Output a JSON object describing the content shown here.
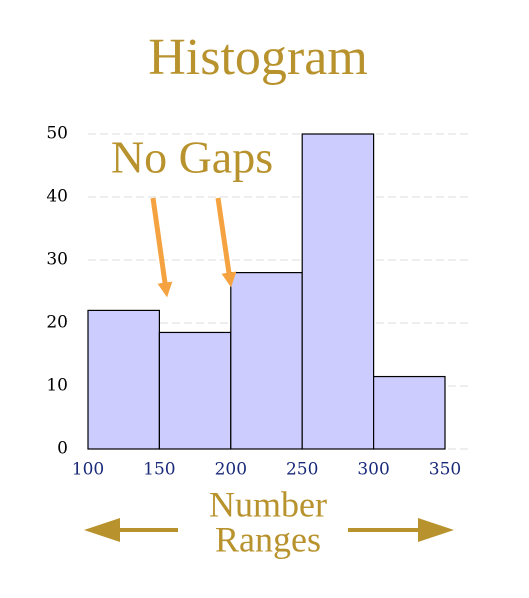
{
  "chart_data": {
    "type": "histogram",
    "title": "Histogram",
    "annotation": "No Gaps",
    "xlabel": [
      "Number",
      "Ranges"
    ],
    "bins": [
      100,
      150,
      200,
      250,
      300,
      350
    ],
    "values": [
      22,
      18.5,
      28,
      50,
      11.5
    ],
    "color": "#ccccff",
    "xlim": [
      100,
      350
    ],
    "xticks": [
      100,
      150,
      200,
      250,
      300,
      350
    ],
    "ylim": [
      0,
      50
    ],
    "yticks": [
      0,
      10,
      20,
      30,
      40,
      50
    ],
    "grid": true
  }
}
